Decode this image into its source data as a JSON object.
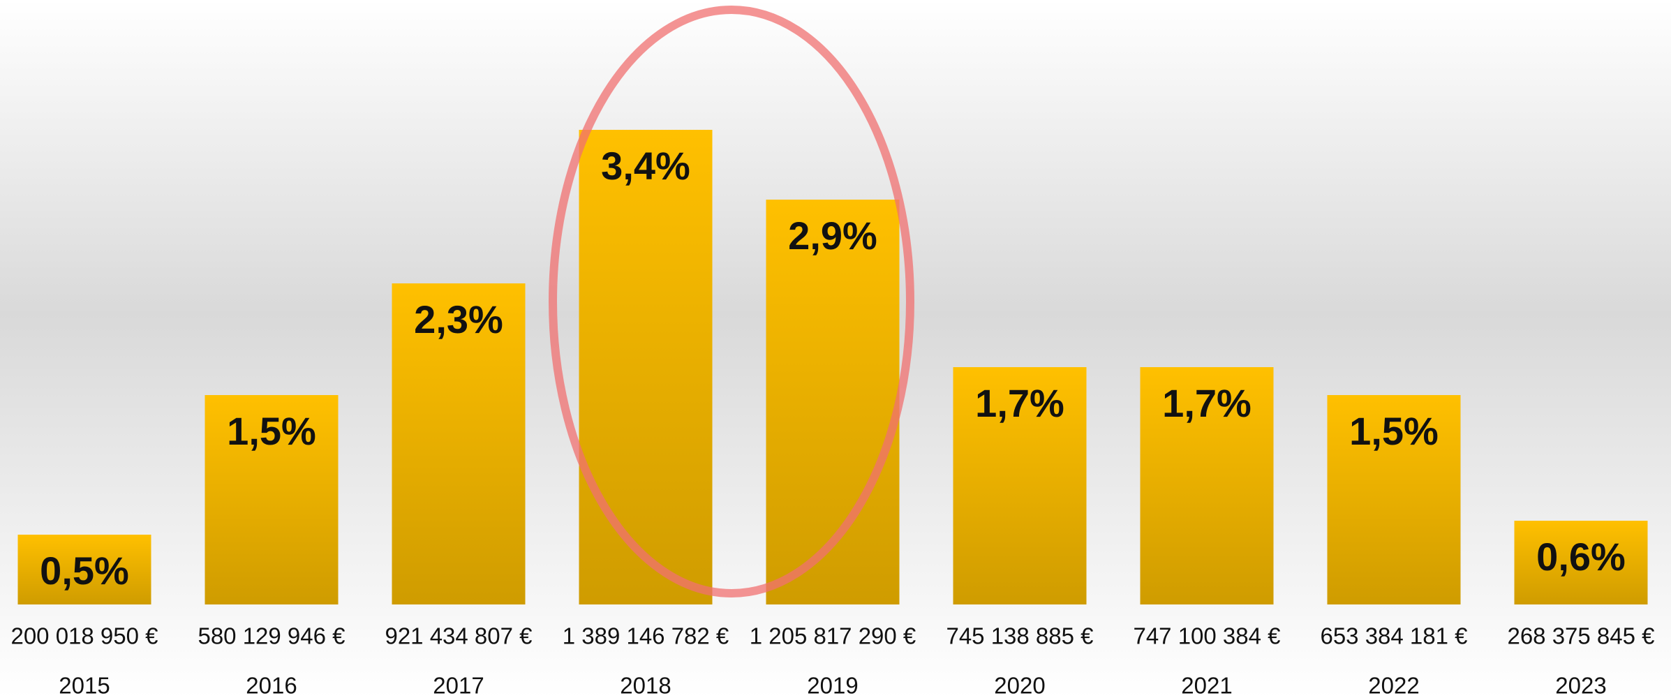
{
  "chart_data": {
    "type": "bar",
    "categories": [
      "2015",
      "2016",
      "2017",
      "2018",
      "2019",
      "2020",
      "2021",
      "2022",
      "2023"
    ],
    "values": [
      0.5,
      1.5,
      2.3,
      3.4,
      2.9,
      1.7,
      1.7,
      1.5,
      0.6
    ],
    "value_labels": [
      "0,5%",
      "1,5%",
      "2,3%",
      "3,4%",
      "2,9%",
      "1,7%",
      "1,7%",
      "1,5%",
      "0,6%"
    ],
    "amounts": [
      "200 018 950 €",
      "580 129 946 €",
      "921 434 807 €",
      "1 389 146 782 €",
      "1 205 817 290 €",
      "745 138 885 €",
      "747 100 384 €",
      "653 384 181 €",
      "268 375 845 €"
    ],
    "color": "#ffc000"
  }
}
